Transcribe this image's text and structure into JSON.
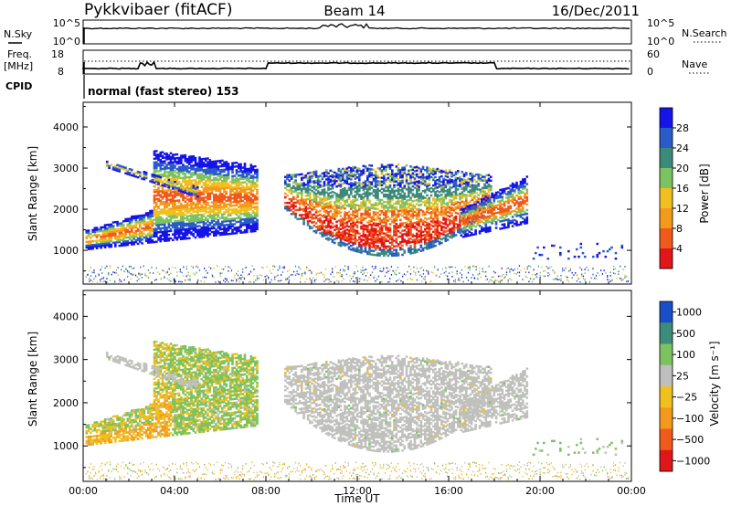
{
  "header": {
    "station": "Pykkvibaer (fitACF)",
    "beam": "Beam 14",
    "date": "16/Dec/2011"
  },
  "noise_panel": {
    "left_label": "N.Sky",
    "right_label": "N.Search",
    "left_ticks": [
      "10^5",
      "10^0"
    ],
    "right_ticks": [
      "10^5",
      "10^0"
    ]
  },
  "freq_panel": {
    "left_label_1": "Freq.",
    "left_label_2": "[MHz]",
    "left_ticks": [
      "18",
      "8"
    ],
    "right_label": "Nave",
    "right_ticks": [
      "60",
      "0"
    ]
  },
  "cpid_panel": {
    "label": "CPID",
    "text": "normal (fast stereo) 153"
  },
  "chart_data": [
    {
      "type": "heatmap",
      "name": "power",
      "ylabel": "Slant Range [km]",
      "xlabel": "",
      "xlim": [
        0,
        24
      ],
      "ylim": [
        180,
        4600
      ],
      "yticks": [
        1000,
        2000,
        3000,
        4000
      ],
      "colorbar": {
        "label": "Power [dB]",
        "ticks": [
          "4",
          "8",
          "12",
          "16",
          "20",
          "24",
          "28"
        ],
        "colors": [
          "#1515e8",
          "#2b5bc8",
          "#3e8a7a",
          "#7dc261",
          "#f0c020",
          "#f39a1c",
          "#f05a1a",
          "#e0161a"
        ]
      }
    },
    {
      "type": "heatmap",
      "name": "velocity",
      "ylabel": "Slant Range [km]",
      "xlabel": "Time UT",
      "xlim": [
        0,
        24
      ],
      "ylim": [
        180,
        4600
      ],
      "yticks": [
        1000,
        2000,
        3000,
        4000
      ],
      "xticks": [
        "00:00",
        "04:00",
        "08:00",
        "12:00",
        "16:00",
        "20:00",
        "00:00"
      ],
      "colorbar": {
        "label": "Velocity [m s⁻¹]",
        "ticks": [
          "1000",
          "500",
          "100",
          "25",
          "−25",
          "−100",
          "−500",
          "−1000"
        ],
        "colors": [
          "#1a4ec8",
          "#3d8b7a",
          "#7dc261",
          "#bfbfbf",
          "#f0c020",
          "#f39a1c",
          "#f05a1a",
          "#e0161a"
        ]
      }
    }
  ],
  "colors": {
    "grey_scatter": "#c0c0bc"
  }
}
